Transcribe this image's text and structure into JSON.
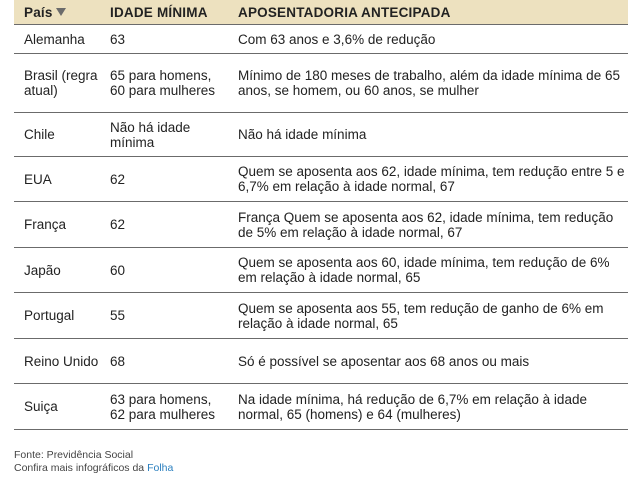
{
  "table": {
    "headers": {
      "country": "País",
      "min_age": "IDADE MÍNIMA",
      "early": "APOSENTADORIA ANTECIPADA"
    },
    "rows": [
      {
        "country": "Alemanha",
        "min_age": "63",
        "early": "Com 63 anos e 3,6% de redução"
      },
      {
        "country": "Brasil (regra atual)",
        "min_age": "65 para homens, 60 para mulheres",
        "early": "Mínimo de 180 meses de trabalho, além da idade mínima de 65 anos, se homem, ou 60 anos, se mulher"
      },
      {
        "country": "Chile",
        "min_age": "Não há idade mínima",
        "early": "Não há idade mínima"
      },
      {
        "country": "EUA",
        "min_age": "62",
        "early": "Quem se aposenta aos 62, idade mínima, tem redução entre 5 e 6,7% em relação à idade normal, 67"
      },
      {
        "country": "França",
        "min_age": "62",
        "early": "França Quem se aposenta aos 62, idade mínima, tem redução de 5% em relação à idade normal, 67"
      },
      {
        "country": "Japão",
        "min_age": "60",
        "early": "Quem se aposenta aos 60, idade mínima, tem redução de 6% em relação à idade normal, 65"
      },
      {
        "country": "Portugal",
        "min_age": "55",
        "early": "Quem se aposenta aos 55, tem redução de ganho de 6% em relação à idade normal, 65"
      },
      {
        "country": "Reino Unido",
        "min_age": "68",
        "early": "Só é possível se aposentar aos 68 anos ou mais"
      },
      {
        "country": "Suiça",
        "min_age": "63 para homens, 62 para mulheres",
        "early": "Na idade mínima, há redução de 6,7% em relação à idade normal, 65 (homens) e 64 (mulheres)"
      }
    ]
  },
  "footer": {
    "source": "Fonte: Previdência Social",
    "more_prefix": "Confira mais infográficos da ",
    "brand": "Folha"
  },
  "icons": {
    "sort": "sort-down-icon"
  },
  "colors": {
    "header_bg": "#ede1bf",
    "brand": "#2a7fbf"
  }
}
